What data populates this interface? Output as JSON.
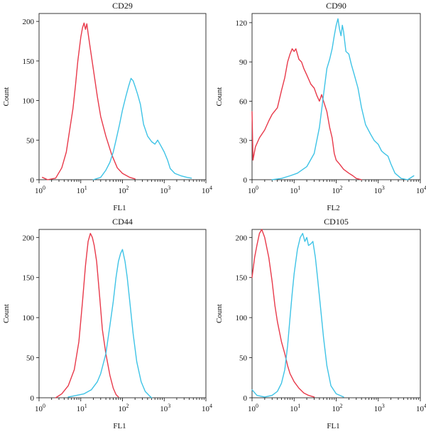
{
  "colors": {
    "red_series": "#e8394a",
    "blue_series": "#3ec3e6"
  },
  "chart_data": [
    {
      "type": "line",
      "title": "CD29",
      "xlabel": "FL1",
      "ylabel": "Count",
      "x_scale": "log",
      "xlim": [
        1,
        10000
      ],
      "ylim": [
        0,
        210
      ],
      "yticks": [
        0,
        50,
        100,
        150,
        200
      ],
      "xticks": [
        {
          "base": "10",
          "exp": "0"
        },
        {
          "base": "10",
          "exp": "1"
        },
        {
          "base": "10",
          "exp": "2"
        },
        {
          "base": "10",
          "exp": "3"
        },
        {
          "base": "10",
          "exp": "4"
        }
      ],
      "series": [
        {
          "color": "red",
          "points": [
            [
              1.2,
              3
            ],
            [
              1.6,
              0
            ],
            [
              2.5,
              2
            ],
            [
              3.5,
              15
            ],
            [
              4.5,
              35
            ],
            [
              5.5,
              65
            ],
            [
              6.5,
              90
            ],
            [
              7.5,
              120
            ],
            [
              8.5,
              150
            ],
            [
              10,
              180
            ],
            [
              11,
              192
            ],
            [
              12,
              198
            ],
            [
              13,
              190
            ],
            [
              14,
              197
            ],
            [
              15,
              185
            ],
            [
              17,
              165
            ],
            [
              20,
              140
            ],
            [
              25,
              105
            ],
            [
              30,
              80
            ],
            [
              40,
              55
            ],
            [
              55,
              32
            ],
            [
              75,
              15
            ],
            [
              100,
              8
            ],
            [
              150,
              3
            ],
            [
              200,
              1
            ]
          ]
        },
        {
          "color": "blue",
          "points": [
            [
              20,
              0
            ],
            [
              30,
              3
            ],
            [
              40,
              12
            ],
            [
              50,
              22
            ],
            [
              60,
              35
            ],
            [
              70,
              50
            ],
            [
              85,
              70
            ],
            [
              100,
              88
            ],
            [
              120,
              105
            ],
            [
              140,
              118
            ],
            [
              160,
              128
            ],
            [
              180,
              125
            ],
            [
              200,
              118
            ],
            [
              230,
              108
            ],
            [
              270,
              95
            ],
            [
              320,
              70
            ],
            [
              400,
              55
            ],
            [
              500,
              48
            ],
            [
              600,
              45
            ],
            [
              700,
              50
            ],
            [
              850,
              42
            ],
            [
              1000,
              35
            ],
            [
              1200,
              25
            ],
            [
              1400,
              14
            ],
            [
              1800,
              8
            ],
            [
              2500,
              5
            ],
            [
              3500,
              3
            ],
            [
              4500,
              2
            ]
          ]
        }
      ]
    },
    {
      "type": "line",
      "title": "CD90",
      "xlabel": "FL2",
      "ylabel": "Count",
      "x_scale": "log",
      "xlim": [
        1,
        10000
      ],
      "ylim": [
        0,
        127
      ],
      "yticks": [
        0,
        30,
        60,
        90,
        120
      ],
      "xticks": [
        {
          "base": "10",
          "exp": "0"
        },
        {
          "base": "10",
          "exp": "1"
        },
        {
          "base": "10",
          "exp": "2"
        },
        {
          "base": "10",
          "exp": "3"
        },
        {
          "base": "10",
          "exp": "4"
        }
      ],
      "series": [
        {
          "color": "red",
          "points": [
            [
              1,
              52
            ],
            [
              1.05,
              15
            ],
            [
              1.2,
              25
            ],
            [
              1.5,
              32
            ],
            [
              2,
              38
            ],
            [
              2.5,
              45
            ],
            [
              3,
              50
            ],
            [
              4,
              55
            ],
            [
              5,
              68
            ],
            [
              6,
              78
            ],
            [
              7,
              90
            ],
            [
              8,
              96
            ],
            [
              9,
              100
            ],
            [
              10,
              98
            ],
            [
              11,
              100
            ],
            [
              13,
              92
            ],
            [
              15,
              90
            ],
            [
              17,
              85
            ],
            [
              20,
              80
            ],
            [
              25,
              73
            ],
            [
              30,
              70
            ],
            [
              35,
              64
            ],
            [
              40,
              60
            ],
            [
              45,
              65
            ],
            [
              50,
              60
            ],
            [
              60,
              52
            ],
            [
              70,
              40
            ],
            [
              80,
              32
            ],
            [
              90,
              20
            ],
            [
              100,
              15
            ],
            [
              120,
              12
            ],
            [
              150,
              8
            ],
            [
              200,
              5
            ],
            [
              250,
              3
            ],
            [
              300,
              1
            ],
            [
              400,
              0
            ]
          ]
        },
        {
          "color": "blue",
          "points": [
            [
              3,
              0
            ],
            [
              5,
              1
            ],
            [
              8,
              3
            ],
            [
              12,
              5
            ],
            [
              20,
              10
            ],
            [
              30,
              20
            ],
            [
              40,
              40
            ],
            [
              50,
              65
            ],
            [
              60,
              85
            ],
            [
              70,
              92
            ],
            [
              80,
              100
            ],
            [
              90,
              110
            ],
            [
              100,
              118
            ],
            [
              110,
              123
            ],
            [
              120,
              115
            ],
            [
              130,
              110
            ],
            [
              140,
              118
            ],
            [
              150,
              113
            ],
            [
              170,
              98
            ],
            [
              200,
              96
            ],
            [
              230,
              88
            ],
            [
              270,
              80
            ],
            [
              330,
              70
            ],
            [
              400,
              55
            ],
            [
              500,
              42
            ],
            [
              650,
              35
            ],
            [
              800,
              30
            ],
            [
              1000,
              27
            ],
            [
              1200,
              22
            ],
            [
              1400,
              20
            ],
            [
              1700,
              18
            ],
            [
              2000,
              12
            ],
            [
              2500,
              5
            ],
            [
              3500,
              1
            ],
            [
              5000,
              0
            ],
            [
              7000,
              3
            ]
          ]
        }
      ]
    },
    {
      "type": "line",
      "title": "CD44",
      "xlabel": "FL1",
      "ylabel": "Count",
      "x_scale": "log",
      "xlim": [
        1,
        10000
      ],
      "ylim": [
        0,
        210
      ],
      "yticks": [
        0,
        50,
        100,
        150,
        200
      ],
      "xticks": [
        {
          "base": "10",
          "exp": "0"
        },
        {
          "base": "10",
          "exp": "1"
        },
        {
          "base": "10",
          "exp": "2"
        },
        {
          "base": "10",
          "exp": "3"
        },
        {
          "base": "10",
          "exp": "4"
        }
      ],
      "series": [
        {
          "color": "red",
          "points": [
            [
              2.5,
              0
            ],
            [
              3.5,
              5
            ],
            [
              5,
              15
            ],
            [
              7,
              35
            ],
            [
              9,
              70
            ],
            [
              11,
              120
            ],
            [
              13,
              165
            ],
            [
              15,
              195
            ],
            [
              17,
              205
            ],
            [
              19,
              200
            ],
            [
              21,
              190
            ],
            [
              24,
              170
            ],
            [
              28,
              130
            ],
            [
              33,
              85
            ],
            [
              40,
              55
            ],
            [
              50,
              28
            ],
            [
              60,
              12
            ],
            [
              70,
              4
            ],
            [
              80,
              1
            ]
          ]
        },
        {
          "color": "blue",
          "points": [
            [
              5,
              1
            ],
            [
              8,
              3
            ],
            [
              12,
              5
            ],
            [
              18,
              10
            ],
            [
              25,
              20
            ],
            [
              30,
              30
            ],
            [
              40,
              55
            ],
            [
              50,
              90
            ],
            [
              60,
              120
            ],
            [
              70,
              150
            ],
            [
              80,
              170
            ],
            [
              90,
              180
            ],
            [
              100,
              185
            ],
            [
              115,
              170
            ],
            [
              130,
              150
            ],
            [
              150,
              120
            ],
            [
              180,
              80
            ],
            [
              220,
              45
            ],
            [
              280,
              20
            ],
            [
              350,
              8
            ],
            [
              450,
              2
            ],
            [
              500,
              0
            ]
          ]
        }
      ]
    },
    {
      "type": "line",
      "title": "CD105",
      "xlabel": "FL1",
      "ylabel": "Count",
      "x_scale": "log",
      "xlim": [
        1,
        10000
      ],
      "ylim": [
        0,
        210
      ],
      "yticks": [
        0,
        50,
        100,
        150,
        200
      ],
      "xticks": [
        {
          "base": "10",
          "exp": "0"
        },
        {
          "base": "10",
          "exp": "1"
        },
        {
          "base": "10",
          "exp": "2"
        },
        {
          "base": "10",
          "exp": "3"
        },
        {
          "base": "10",
          "exp": "4"
        }
      ],
      "series": [
        {
          "color": "red",
          "points": [
            [
              1,
              150
            ],
            [
              1.15,
              175
            ],
            [
              1.3,
              190
            ],
            [
              1.5,
              205
            ],
            [
              1.7,
              210
            ],
            [
              2,
              200
            ],
            [
              2.5,
              175
            ],
            [
              3,
              145
            ],
            [
              3.5,
              115
            ],
            [
              4,
              95
            ],
            [
              5,
              70
            ],
            [
              6,
              55
            ],
            [
              7,
              40
            ],
            [
              8,
              30
            ],
            [
              10,
              20
            ],
            [
              13,
              12
            ],
            [
              17,
              6
            ],
            [
              22,
              3
            ],
            [
              30,
              1
            ]
          ]
        },
        {
          "color": "blue",
          "points": [
            [
              1,
              10
            ],
            [
              1.3,
              3
            ],
            [
              2,
              1
            ],
            [
              3,
              3
            ],
            [
              4,
              8
            ],
            [
              5,
              18
            ],
            [
              6,
              35
            ],
            [
              7,
              65
            ],
            [
              8,
              100
            ],
            [
              9,
              130
            ],
            [
              10,
              155
            ],
            [
              12,
              185
            ],
            [
              14,
              200
            ],
            [
              16,
              205
            ],
            [
              18,
              195
            ],
            [
              20,
              200
            ],
            [
              22,
              190
            ],
            [
              25,
              192
            ],
            [
              28,
              195
            ],
            [
              32,
              175
            ],
            [
              36,
              150
            ],
            [
              42,
              115
            ],
            [
              50,
              75
            ],
            [
              60,
              40
            ],
            [
              75,
              15
            ],
            [
              100,
              5
            ],
            [
              150,
              1
            ]
          ]
        }
      ]
    }
  ]
}
